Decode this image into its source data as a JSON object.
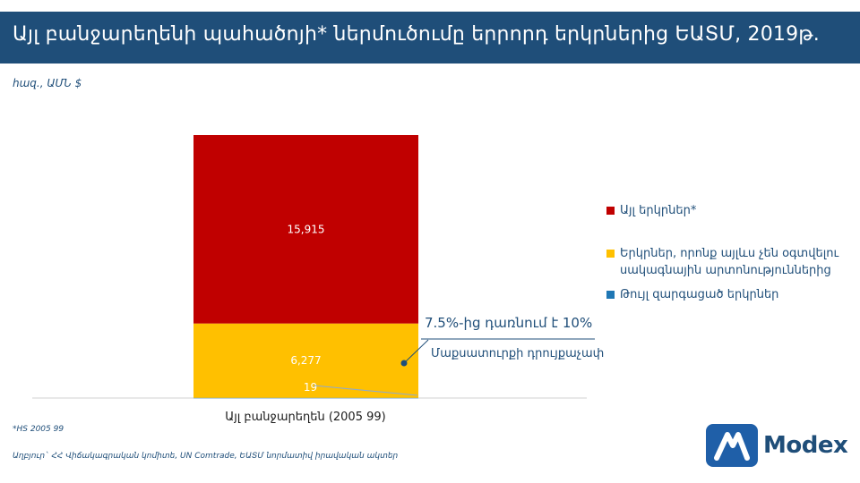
{
  "header": {
    "title": "Այլ բանջարեղենի պահածոյի* ներմուծումը երրորդ երկրներից ԵԱՏՄ, 2019թ.",
    "unit": "հազ., ԱՄՆ $"
  },
  "chart_data": {
    "type": "bar",
    "stacked": true,
    "categories": [
      "Այլ բանջարեղեն (2005 99)"
    ],
    "series": [
      {
        "name": "Թույլ զարգացած երկրներ",
        "values": [
          19
        ],
        "color": "#1f77b4"
      },
      {
        "name": "Երկրներ, որոնք այլևս չեն օգտվելու սակագնային արտոնություններից",
        "values": [
          6277
        ],
        "color": "#ffc000"
      },
      {
        "name": "Այլ երկրներ*",
        "values": [
          15915
        ],
        "color": "#c00000"
      }
    ],
    "data_labels": [
      "19",
      "6,277",
      "15,915"
    ],
    "annotation": {
      "headline": "7.5%-ից դառնում է 10%",
      "subtext": "Մաքսատուրքի դրույքաչափ"
    },
    "legend_position": "right",
    "grid": false
  },
  "footer": {
    "note": "*HS 2005 99",
    "source": "Աղբյուր` ՀՀ Վիճակագրական կոմիտե, UN Comtrade, ԵԱՏՄ նորմատիվ իրավական ակտեր"
  },
  "logo": {
    "name": "Modex"
  },
  "colors": {
    "title_bg": "#1f4e79",
    "accent": "#1f4e79"
  }
}
